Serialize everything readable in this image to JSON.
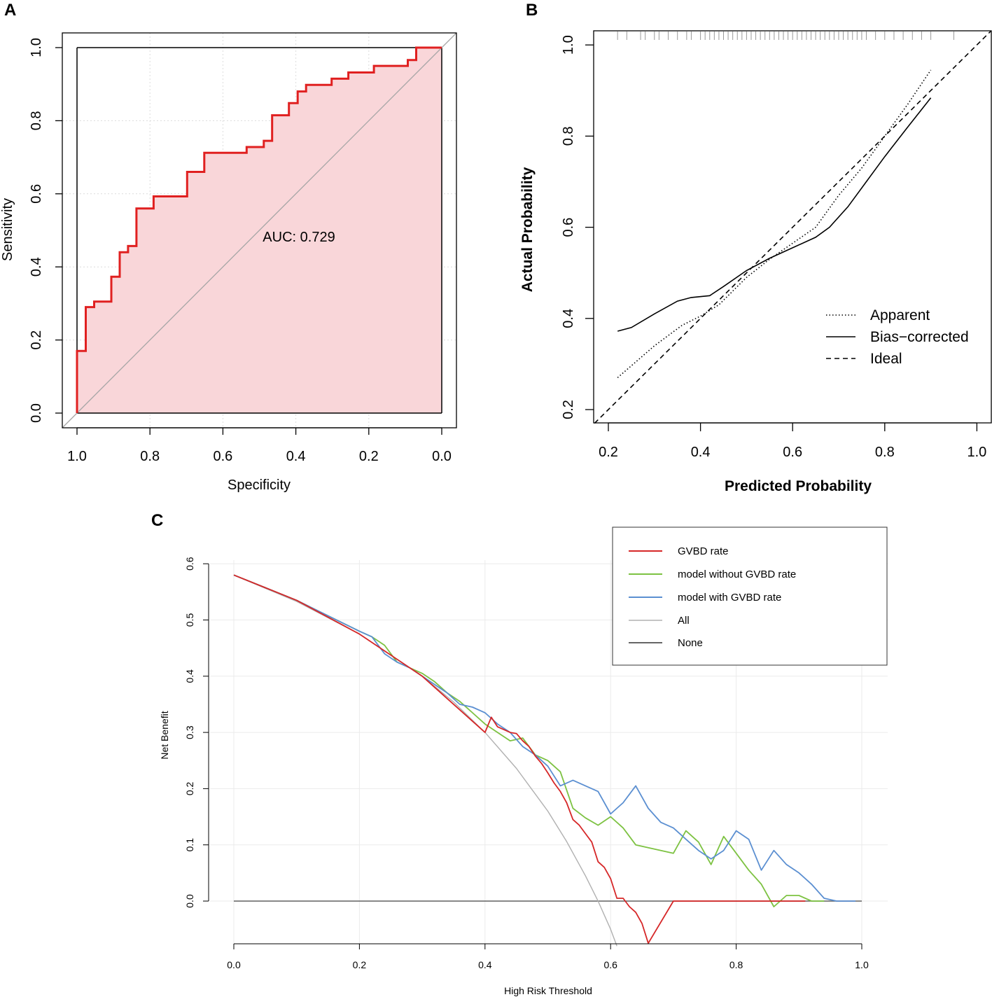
{
  "chart_data": [
    {
      "panel": "A",
      "type": "line",
      "xlabel": "Specificity",
      "ylabel": "Sensitivity",
      "annotation": "AUC: 0.729",
      "xlim": [
        1.0,
        0.0
      ],
      "ylim": [
        0.0,
        1.0
      ],
      "x_ticks": [
        "1.0",
        "0.8",
        "0.6",
        "0.4",
        "0.2",
        "0.0"
      ],
      "y_ticks": [
        "0.0",
        "0.2",
        "0.4",
        "0.6",
        "0.8",
        "1.0"
      ],
      "colors": {
        "roc": "#e02020",
        "fill": "#f9d6d9",
        "diagonal": "#a6a6a6"
      },
      "roc_curve": [
        [
          1.0,
          0.0
        ],
        [
          1.0,
          0.17
        ],
        [
          0.976,
          0.17
        ],
        [
          0.976,
          0.29
        ],
        [
          0.953,
          0.29
        ],
        [
          0.953,
          0.305
        ],
        [
          0.906,
          0.305
        ],
        [
          0.906,
          0.373
        ],
        [
          0.883,
          0.373
        ],
        [
          0.883,
          0.44
        ],
        [
          0.86,
          0.44
        ],
        [
          0.86,
          0.457
        ],
        [
          0.837,
          0.457
        ],
        [
          0.837,
          0.56
        ],
        [
          0.79,
          0.56
        ],
        [
          0.79,
          0.593
        ],
        [
          0.698,
          0.593
        ],
        [
          0.698,
          0.66
        ],
        [
          0.651,
          0.66
        ],
        [
          0.651,
          0.712
        ],
        [
          0.535,
          0.712
        ],
        [
          0.535,
          0.728
        ],
        [
          0.488,
          0.728
        ],
        [
          0.488,
          0.745
        ],
        [
          0.465,
          0.745
        ],
        [
          0.465,
          0.815
        ],
        [
          0.419,
          0.815
        ],
        [
          0.419,
          0.848
        ],
        [
          0.395,
          0.848
        ],
        [
          0.395,
          0.88
        ],
        [
          0.372,
          0.88
        ],
        [
          0.372,
          0.898
        ],
        [
          0.302,
          0.898
        ],
        [
          0.302,
          0.915
        ],
        [
          0.256,
          0.915
        ],
        [
          0.256,
          0.932
        ],
        [
          0.186,
          0.932
        ],
        [
          0.186,
          0.95
        ],
        [
          0.093,
          0.95
        ],
        [
          0.093,
          0.966
        ],
        [
          0.07,
          0.966
        ],
        [
          0.07,
          1.0
        ],
        [
          0.0,
          1.0
        ]
      ]
    },
    {
      "panel": "B",
      "type": "line",
      "xlabel": "Predicted Probability",
      "ylabel": "Actual Probability",
      "xlim": [
        0.17,
        1.03
      ],
      "ylim": [
        0.17,
        1.03
      ],
      "x_ticks": [
        "0.2",
        "0.4",
        "0.6",
        "0.8",
        "1.0"
      ],
      "y_ticks": [
        "0.2",
        "0.4",
        "0.6",
        "0.8",
        "1.0"
      ],
      "legend": [
        "Apparent",
        "Bias−corrected",
        "Ideal"
      ],
      "rug": [
        0.22,
        0.24,
        0.27,
        0.28,
        0.3,
        0.31,
        0.33,
        0.35,
        0.37,
        0.38,
        0.4,
        0.41,
        0.42,
        0.43,
        0.44,
        0.45,
        0.46,
        0.47,
        0.48,
        0.49,
        0.5,
        0.51,
        0.52,
        0.53,
        0.54,
        0.55,
        0.56,
        0.57,
        0.58,
        0.59,
        0.6,
        0.61,
        0.62,
        0.63,
        0.64,
        0.65,
        0.66,
        0.67,
        0.68,
        0.69,
        0.7,
        0.71,
        0.72,
        0.73,
        0.74,
        0.75,
        0.76,
        0.78,
        0.8,
        0.82,
        0.84,
        0.86,
        0.88,
        0.9,
        0.95
      ],
      "series": [
        {
          "name": "Apparent",
          "x": [
            0.22,
            0.3,
            0.36,
            0.4,
            0.44,
            0.5,
            0.55,
            0.6,
            0.65,
            0.7,
            0.75,
            0.8,
            0.85,
            0.9
          ],
          "y": [
            0.27,
            0.34,
            0.385,
            0.405,
            0.43,
            0.49,
            0.53,
            0.565,
            0.6,
            0.67,
            0.73,
            0.8,
            0.87,
            0.945
          ]
        },
        {
          "name": "Bias-corrected",
          "x": [
            0.22,
            0.25,
            0.3,
            0.35,
            0.38,
            0.42,
            0.45,
            0.5,
            0.55,
            0.6,
            0.65,
            0.68,
            0.72,
            0.76,
            0.8,
            0.85,
            0.9
          ],
          "y": [
            0.372,
            0.38,
            0.41,
            0.438,
            0.446,
            0.45,
            0.47,
            0.505,
            0.532,
            0.555,
            0.578,
            0.6,
            0.645,
            0.7,
            0.755,
            0.82,
            0.884
          ]
        },
        {
          "name": "Ideal",
          "x": [
            0.17,
            1.03
          ],
          "y": [
            0.17,
            1.03
          ]
        }
      ]
    },
    {
      "panel": "C",
      "type": "line",
      "xlabel": "High Risk Threshold",
      "ylabel": "Net Benefit",
      "xlim": [
        0.0,
        1.0
      ],
      "ylim": [
        -0.08,
        0.6
      ],
      "x_ticks": [
        "0.0",
        "0.2",
        "0.4",
        "0.6",
        "0.8",
        "1.0"
      ],
      "y_ticks": [
        "0.0",
        "0.1",
        "0.2",
        "0.3",
        "0.4",
        "0.5",
        "0.6"
      ],
      "legend": [
        "GVBD rate",
        "model without GVBD rate",
        "model with GVBD rate",
        "All",
        "None"
      ],
      "series": [
        {
          "name": "GVBD rate",
          "color": "#d62728",
          "x": [
            0.0,
            0.1,
            0.2,
            0.3,
            0.4,
            0.41,
            0.42,
            0.43,
            0.44,
            0.45,
            0.46,
            0.47,
            0.48,
            0.49,
            0.5,
            0.51,
            0.52,
            0.53,
            0.54,
            0.55,
            0.56,
            0.57,
            0.58,
            0.59,
            0.6,
            0.61,
            0.62,
            0.63,
            0.64,
            0.65,
            0.66,
            0.7,
            0.8,
            0.9,
            0.91
          ],
          "y": [
            0.58,
            0.535,
            0.475,
            0.4,
            0.3,
            0.327,
            0.31,
            0.305,
            0.3,
            0.298,
            0.285,
            0.275,
            0.258,
            0.245,
            0.228,
            0.21,
            0.195,
            0.175,
            0.145,
            0.135,
            0.12,
            0.105,
            0.07,
            0.06,
            0.04,
            0.005,
            0.005,
            -0.01,
            -0.02,
            -0.04,
            -0.075,
            0.0,
            0.0,
            0.0,
            0.0
          ]
        },
        {
          "name": "model without GVBD rate",
          "color": "#7dc242",
          "x": [
            0.0,
            0.1,
            0.2,
            0.22,
            0.24,
            0.26,
            0.28,
            0.3,
            0.32,
            0.34,
            0.36,
            0.38,
            0.4,
            0.42,
            0.44,
            0.46,
            0.48,
            0.5,
            0.52,
            0.54,
            0.56,
            0.58,
            0.6,
            0.62,
            0.64,
            0.66,
            0.68,
            0.7,
            0.72,
            0.74,
            0.76,
            0.78,
            0.8,
            0.82,
            0.84,
            0.86,
            0.88,
            0.9,
            0.92,
            0.94
          ],
          "y": [
            0.58,
            0.535,
            0.48,
            0.47,
            0.455,
            0.425,
            0.415,
            0.405,
            0.39,
            0.37,
            0.355,
            0.335,
            0.315,
            0.3,
            0.285,
            0.29,
            0.26,
            0.25,
            0.23,
            0.165,
            0.148,
            0.135,
            0.15,
            0.13,
            0.1,
            0.095,
            0.09,
            0.085,
            0.125,
            0.105,
            0.065,
            0.115,
            0.085,
            0.055,
            0.03,
            -0.01,
            0.01,
            0.01,
            0.0,
            0.0
          ]
        },
        {
          "name": "model with GVBD rate",
          "color": "#5b8fd1",
          "x": [
            0.0,
            0.1,
            0.2,
            0.22,
            0.24,
            0.26,
            0.28,
            0.3,
            0.32,
            0.34,
            0.36,
            0.38,
            0.4,
            0.42,
            0.44,
            0.46,
            0.48,
            0.5,
            0.52,
            0.54,
            0.56,
            0.58,
            0.6,
            0.62,
            0.64,
            0.66,
            0.68,
            0.7,
            0.72,
            0.74,
            0.76,
            0.78,
            0.8,
            0.82,
            0.84,
            0.86,
            0.88,
            0.9,
            0.92,
            0.94,
            0.96,
            0.99
          ],
          "y": [
            0.58,
            0.535,
            0.48,
            0.47,
            0.44,
            0.425,
            0.415,
            0.4,
            0.385,
            0.37,
            0.35,
            0.345,
            0.335,
            0.315,
            0.3,
            0.275,
            0.26,
            0.24,
            0.205,
            0.215,
            0.205,
            0.195,
            0.155,
            0.175,
            0.205,
            0.165,
            0.14,
            0.13,
            0.11,
            0.09,
            0.075,
            0.09,
            0.125,
            0.11,
            0.055,
            0.09,
            0.065,
            0.05,
            0.03,
            0.005,
            0.0,
            0.0
          ]
        },
        {
          "name": "All",
          "color": "#b0b0b0",
          "x": [
            0.0,
            0.1,
            0.2,
            0.3,
            0.35,
            0.4,
            0.45,
            0.5,
            0.53,
            0.56,
            0.58,
            0.6,
            0.61
          ],
          "y": [
            0.58,
            0.533,
            0.475,
            0.4,
            0.354,
            0.3,
            0.236,
            0.16,
            0.106,
            0.045,
            0.0,
            -0.05,
            -0.08
          ]
        },
        {
          "name": "None",
          "color": "#606060",
          "x": [
            0.0,
            1.0
          ],
          "y": [
            0.0,
            0.0
          ]
        }
      ]
    }
  ],
  "panels": {
    "A": {
      "letter": "A",
      "xlabel": "Specificity",
      "ylabel": "Sensitivity",
      "auc": "AUC: 0.729",
      "xticks": [
        "1.0",
        "0.8",
        "0.6",
        "0.4",
        "0.2",
        "0.0"
      ],
      "yticks": [
        "0.0",
        "0.2",
        "0.4",
        "0.6",
        "0.8",
        "1.0"
      ]
    },
    "B": {
      "letter": "B",
      "xlabel": "Predicted Probability",
      "ylabel": "Actual Probability",
      "xticks": [
        "0.2",
        "0.4",
        "0.6",
        "0.8",
        "1.0"
      ],
      "yticks": [
        "0.2",
        "0.4",
        "0.6",
        "0.8",
        "1.0"
      ],
      "legend": [
        "Apparent",
        "Bias−corrected",
        "Ideal"
      ]
    },
    "C": {
      "letter": "C",
      "xlabel": "High Risk Threshold",
      "ylabel": "Net Benefit",
      "xticks": [
        "0.0",
        "0.2",
        "0.4",
        "0.6",
        "0.8",
        "1.0"
      ],
      "yticks": [
        "0.0",
        "0.1",
        "0.2",
        "0.3",
        "0.4",
        "0.5",
        "0.6"
      ],
      "legend": [
        "GVBD rate",
        "model without GVBD rate",
        "model with GVBD rate",
        "All",
        "None"
      ]
    }
  }
}
